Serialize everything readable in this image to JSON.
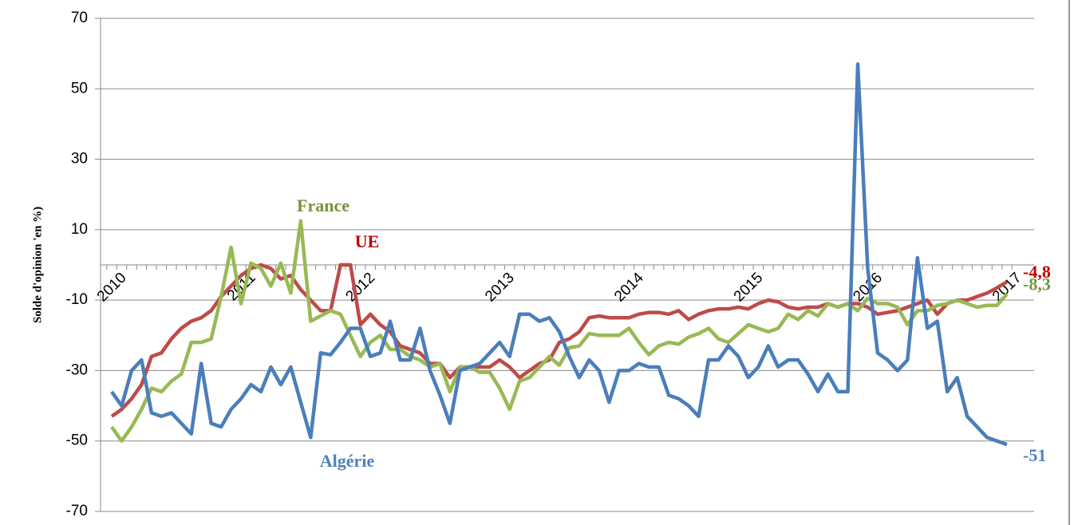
{
  "chart_data": {
    "type": "line",
    "y_axis_label": "Solde d'opinion 'en %)",
    "categories": [
      "2010",
      null,
      null,
      null,
      null,
      null,
      null,
      null,
      null,
      null,
      null,
      null,
      null,
      "2011",
      null,
      null,
      null,
      null,
      null,
      null,
      null,
      null,
      null,
      null,
      null,
      "2012",
      null,
      null,
      null,
      null,
      null,
      null,
      null,
      null,
      null,
      null,
      null,
      null,
      null,
      "2013",
      null,
      null,
      null,
      null,
      null,
      null,
      null,
      null,
      null,
      null,
      null,
      null,
      "2014",
      null,
      null,
      null,
      null,
      null,
      null,
      null,
      null,
      null,
      null,
      null,
      "2015",
      null,
      null,
      null,
      null,
      null,
      null,
      null,
      null,
      null,
      null,
      null,
      "2016",
      null,
      null,
      null,
      null,
      null,
      null,
      null,
      null,
      null,
      null,
      null,
      null,
      null,
      "2017"
    ],
    "ylim": [
      -70,
      70
    ],
    "yticks": [
      -70,
      -50,
      -30,
      -10,
      10,
      30,
      50,
      70
    ],
    "grid": true,
    "series": [
      {
        "name": "UE",
        "color": "#be4b48",
        "values": [
          -43,
          -41,
          -38,
          -34,
          -26,
          -25,
          -21,
          -18,
          -16,
          -15,
          -13,
          -9,
          -6,
          -3,
          -1,
          0,
          -1,
          -4,
          -3,
          -7,
          -10,
          -13,
          -13,
          0,
          0,
          -17,
          -14,
          -17,
          -19,
          -23,
          -24,
          -25,
          -28,
          -28,
          -32,
          -29,
          -29,
          -29,
          -29,
          -27,
          -29,
          -32,
          -30,
          -28,
          -27,
          -22,
          -21,
          -19,
          -15,
          -14.5,
          -15,
          -15,
          -15,
          -14,
          -13.5,
          -13.5,
          -14,
          -13,
          -15.5,
          -14,
          -13,
          -12.5,
          -12.5,
          -12,
          -12.5,
          -11,
          -10,
          -10.5,
          -12,
          -12.5,
          -12,
          -12,
          -11,
          -12,
          -11,
          -11,
          -12,
          -14,
          -13.5,
          -13,
          -12,
          -11,
          -10,
          -14,
          -11,
          -10,
          -10,
          -9,
          -8,
          -6.5,
          -4.8
        ],
        "value_labels": {
          "90": "-4,8"
        }
      },
      {
        "name": "France",
        "color": "#98b954",
        "values": [
          -46,
          -50,
          -46,
          -41,
          -35,
          -36,
          -33,
          -31,
          -22,
          -22,
          -21,
          -9,
          5,
          -11,
          0.5,
          -1,
          -6,
          0.5,
          -8,
          12.5,
          -16,
          -14.5,
          -13,
          -14,
          -20,
          -26,
          -22,
          -20,
          -24,
          -24,
          -26,
          -27,
          -29,
          -28,
          -36,
          -29,
          -29,
          -30.5,
          -30.5,
          -35,
          -41,
          -33,
          -32,
          -29,
          -26,
          -28.5,
          -23.5,
          -23,
          -19.5,
          -20,
          -20,
          -20,
          -18,
          -22,
          -25.5,
          -23,
          -22,
          -22.5,
          -20.5,
          -19.5,
          -18,
          -21,
          -22,
          -19.5,
          -17,
          -18,
          -19,
          -18,
          -14,
          -15.5,
          -13,
          -14.5,
          -11,
          -12,
          -11,
          -13,
          -9.5,
          -11,
          -11,
          -12,
          -17,
          -13,
          -13,
          -11.5,
          -11,
          -10,
          -11,
          -12,
          -11.5,
          -11.5,
          -8.3
        ],
        "value_labels": {
          "90": "-8,3"
        }
      },
      {
        "name": "Algérie",
        "color": "#4a7ebb",
        "values": [
          -36,
          -40,
          -30,
          -27,
          -42,
          -43,
          -42,
          -45,
          -48,
          -28,
          -45,
          -46,
          -41,
          -38,
          -34,
          -36,
          -29,
          -34,
          -29,
          -39,
          -49,
          -25,
          -25.5,
          -22,
          -18,
          -18,
          -26,
          -25,
          -16,
          -27,
          -27,
          -18,
          -30,
          -37,
          -45,
          -30,
          -29,
          -28,
          -25,
          -22,
          -26,
          -14,
          -14,
          -16,
          -15,
          -19,
          -26,
          -32,
          -27,
          -30,
          -39,
          -30,
          -30,
          -28,
          -29,
          -29,
          -37,
          -38,
          -40,
          -43,
          -27,
          -27,
          -23,
          -26,
          -32,
          -29,
          -23,
          -29,
          -27,
          -27,
          -31,
          -36,
          -31,
          -36,
          -36,
          57,
          -1,
          -25,
          -27,
          -30,
          -27,
          2,
          -18,
          -16,
          -36,
          -32,
          -43,
          -46,
          -49,
          -50,
          -51
        ]
      }
    ]
  }
}
